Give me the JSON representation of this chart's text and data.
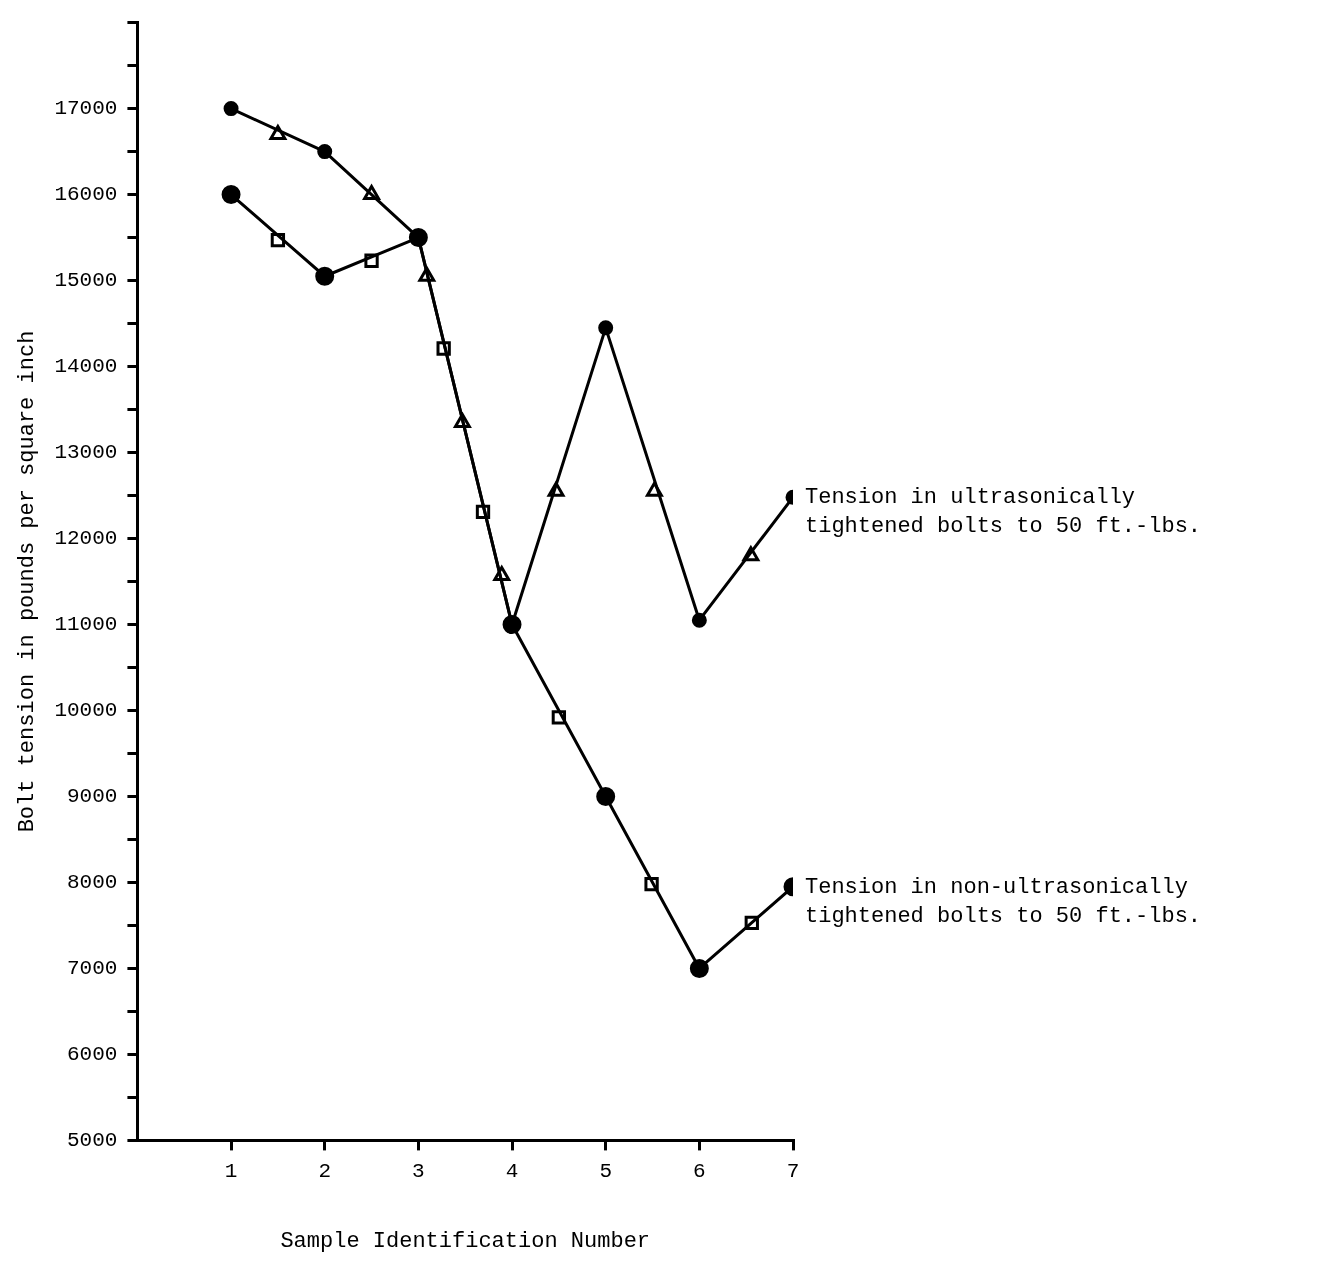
{
  "chart_data": {
    "type": "line",
    "xlabel": "Sample Identification Number",
    "ylabel": "Bolt tension in pounds per square inch",
    "xlim": [
      0,
      7
    ],
    "xticks": [
      1,
      2,
      3,
      4,
      5,
      6,
      7
    ],
    "ylim": [
      5000,
      18000
    ],
    "yticks": [
      5000,
      {
        "value": 5500,
        "label": null
      },
      6000,
      {
        "value": 6500,
        "label": null
      },
      7000,
      {
        "value": 7500,
        "label": null
      },
      8000,
      {
        "value": 8500,
        "label": null
      },
      9000,
      {
        "value": 9500,
        "label": null
      },
      10000,
      {
        "value": 10500,
        "label": null
      },
      11000,
      {
        "value": 11500,
        "label": null
      },
      12000,
      {
        "value": 12500,
        "label": null
      },
      13000,
      {
        "value": 13500,
        "label": null
      },
      14000,
      {
        "value": 14500,
        "label": null
      },
      15000,
      {
        "value": 15500,
        "label": null
      },
      16000,
      {
        "value": 16500,
        "label": null
      },
      17000,
      {
        "value": 17500,
        "label": null
      },
      {
        "value": 18000,
        "label": null
      }
    ],
    "grid": false,
    "legend": false,
    "series": [
      {
        "name": "Tension in ultrasonically tightened bolts to 50 ft.-lbs.",
        "marker": "circle",
        "color": "#000000",
        "x": [
          1,
          2,
          3,
          4,
          5,
          6,
          7
        ],
        "values": [
          17000,
          16500,
          15500,
          11000,
          14450,
          11050,
          12480
        ]
      },
      {
        "name": "Tension in non-ultrasonically tightened bolts to 50 ft.-lbs.",
        "marker": "circle",
        "color": "#000000",
        "x": [
          1,
          2,
          3,
          4,
          5,
          6,
          7
        ],
        "values": [
          16000,
          15050,
          15500,
          11000,
          9000,
          7000,
          7950
        ]
      },
      {
        "type": "scatter",
        "marker": "triangle",
        "color": "#000000",
        "x": [
          1.5,
          2.5,
          3.09,
          3.47,
          3.89,
          4.47,
          5.52,
          6.55
        ],
        "values": [
          16700,
          16000,
          15050,
          13350,
          11570,
          12550,
          12550,
          11800
        ]
      },
      {
        "type": "scatter",
        "marker": "square",
        "color": "#000000",
        "x": [
          1.5,
          2.5,
          3.27,
          3.69,
          4.5,
          5.49,
          6.56
        ],
        "values": [
          15470,
          15230,
          14210,
          12310,
          9920,
          7980,
          7530
        ]
      }
    ]
  }
}
